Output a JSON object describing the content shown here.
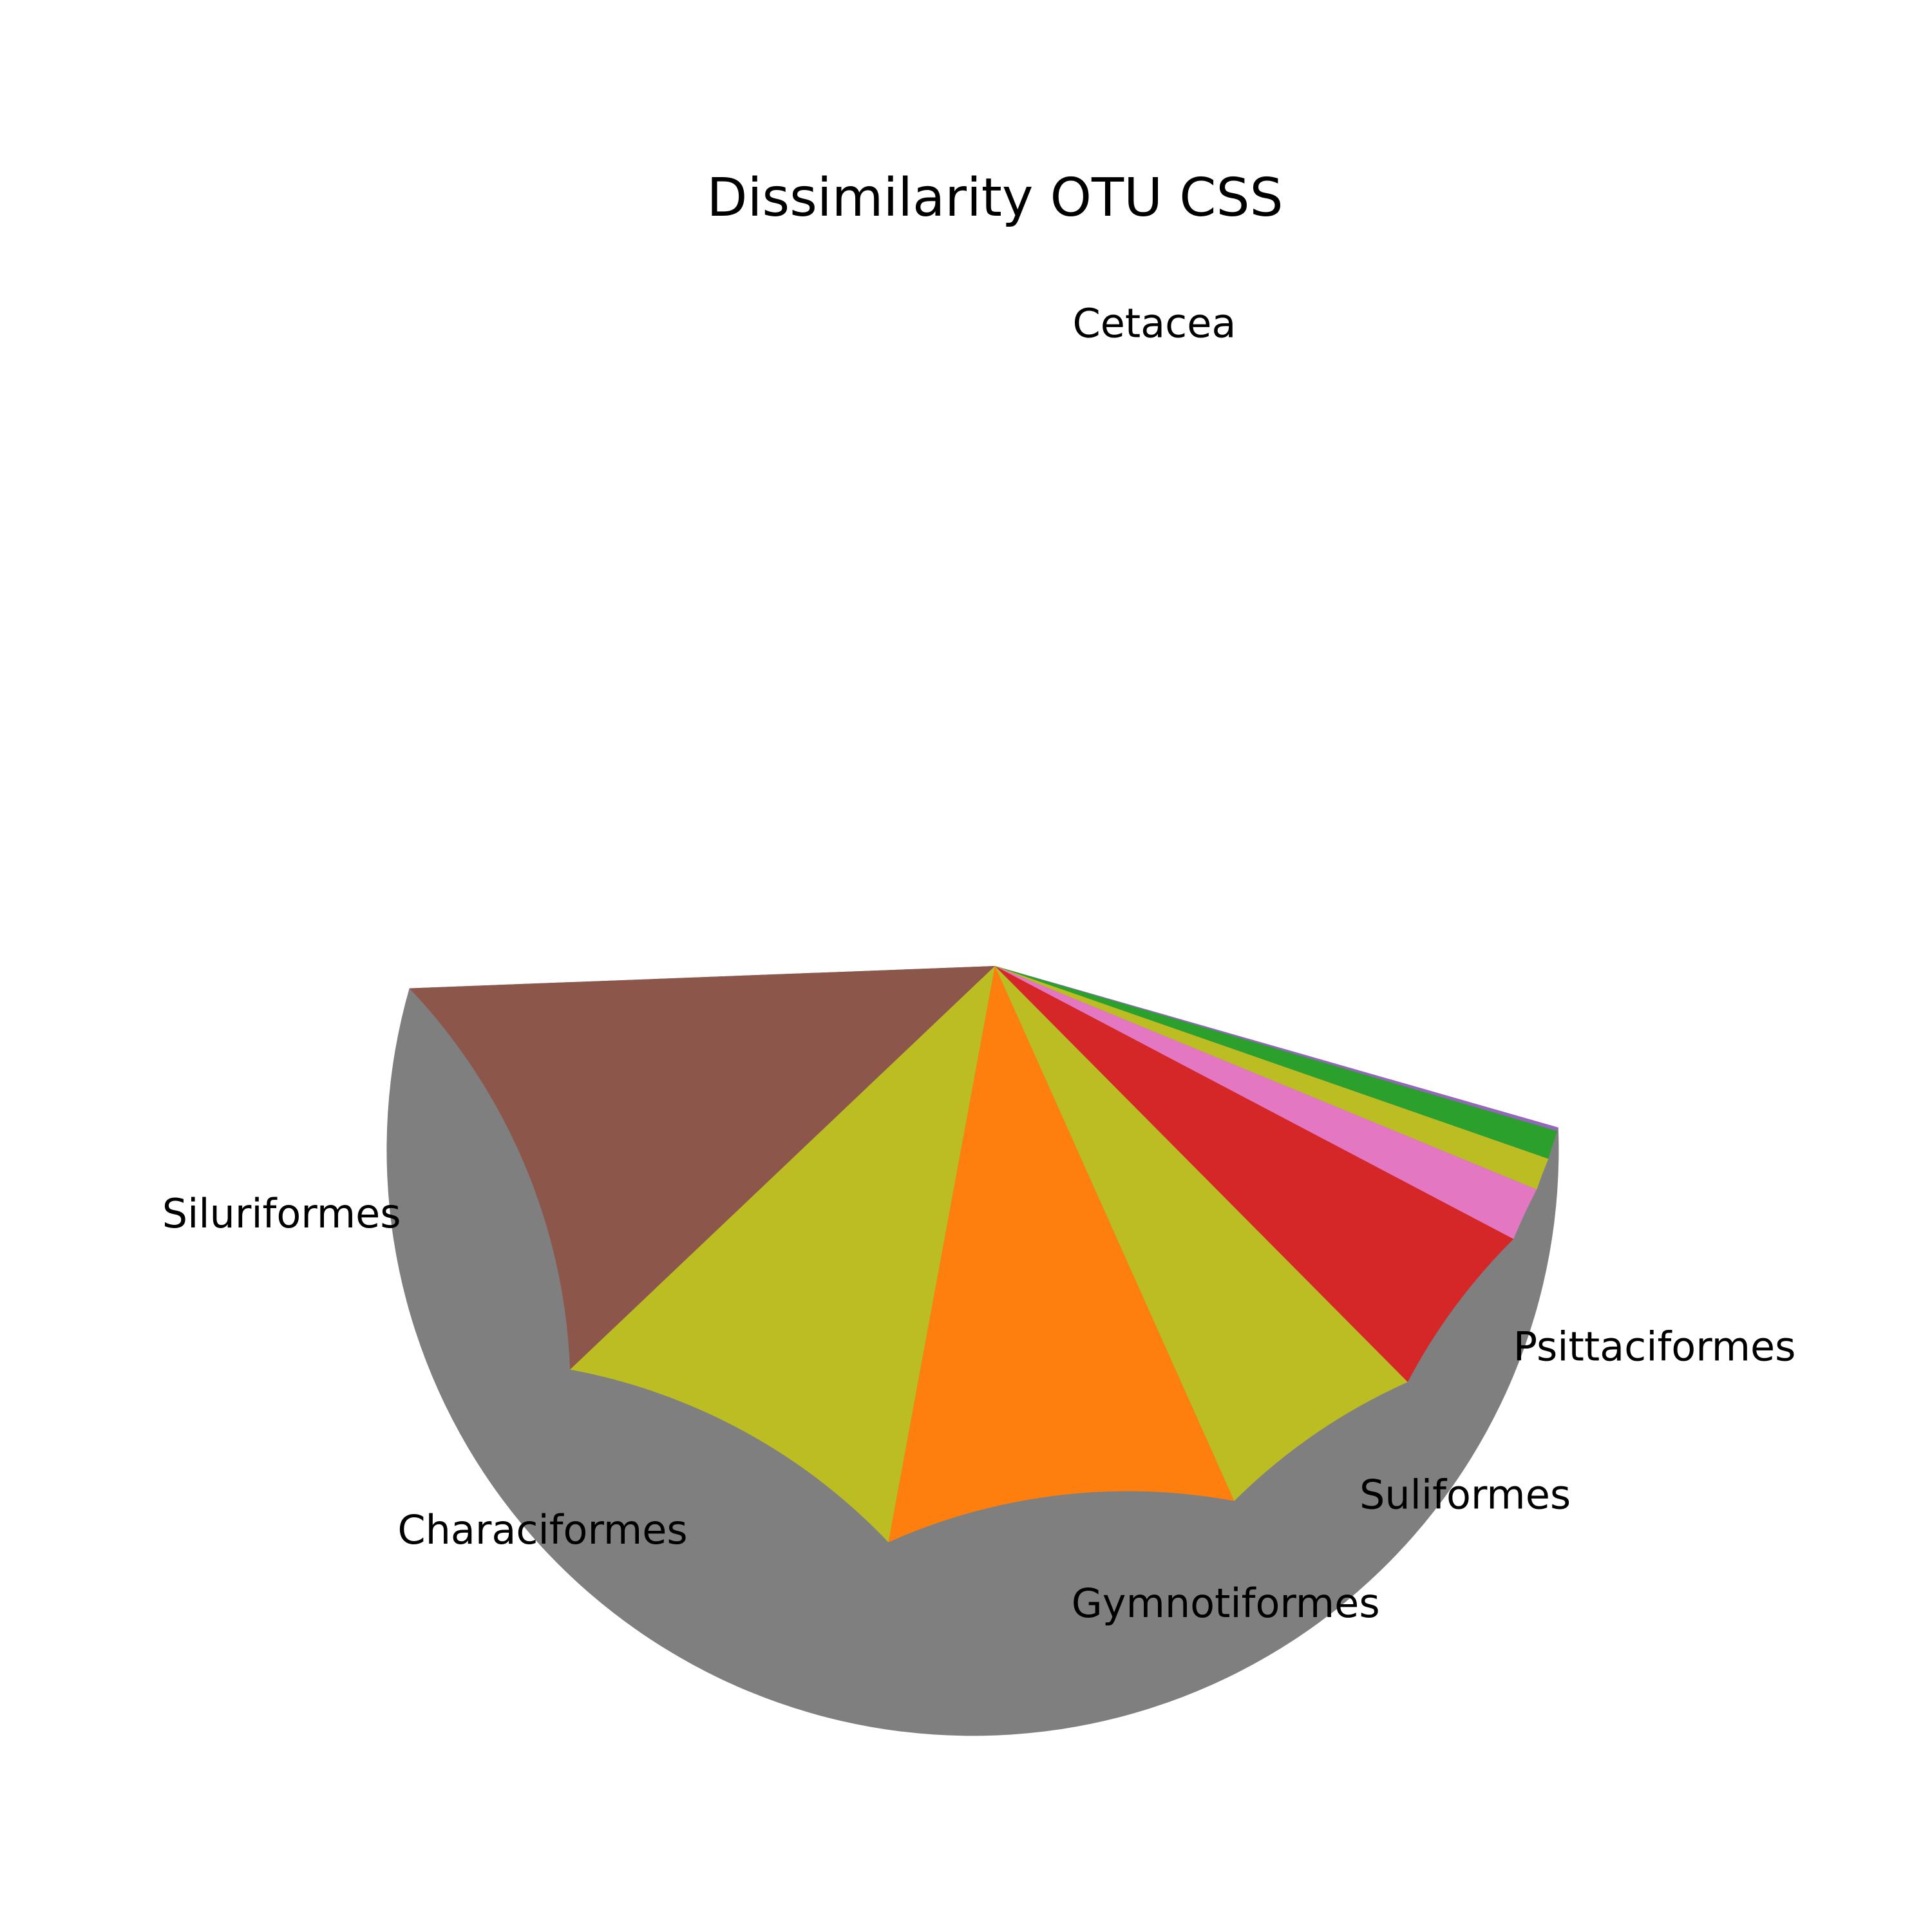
{
  "chart_data": {
    "type": "pie",
    "title": "Dissimilarity OTU CSS",
    "start_angle_deg": -16,
    "direction": "clockwise",
    "slices": [
      {
        "label": "Cetacea",
        "value": 55.6,
        "color": "#7f7f7f"
      },
      {
        "label": "Siluriformes",
        "value": 11.6,
        "color": "#8c564b"
      },
      {
        "label": "Characiformes",
        "value": 10.1,
        "color": "#bcbd22"
      },
      {
        "label": "Gymnotiformes",
        "value": 9.7,
        "color": "#ff7f0e"
      },
      {
        "label": "Suliformes",
        "value": 5.8,
        "color": "#bcbd22"
      },
      {
        "label": "Psittaciformes",
        "value": 4.9,
        "color": "#d62728"
      },
      {
        "label": "",
        "value": 1.5,
        "color": "#e377c2"
      },
      {
        "label": "",
        "value": 0.9,
        "color": "#bcbd22"
      },
      {
        "label": "",
        "value": 0.8,
        "color": "#2ca02c"
      },
      {
        "label": "",
        "value": 0.1,
        "color": "#9467bd"
      }
    ]
  }
}
